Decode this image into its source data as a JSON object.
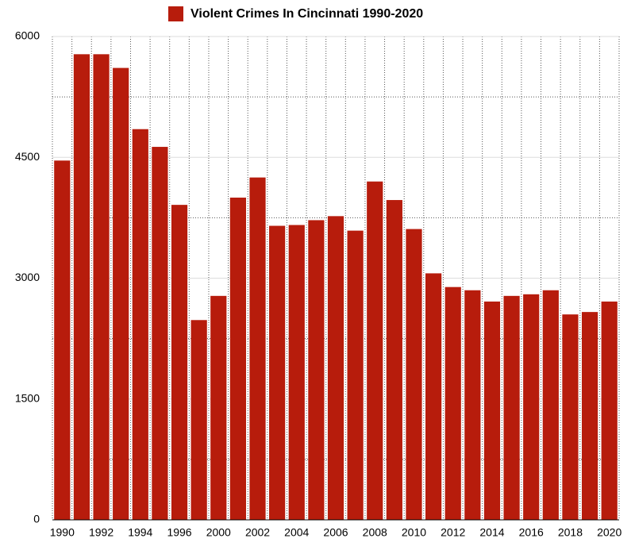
{
  "chart_data": {
    "type": "bar",
    "series": [
      {
        "name": "Violent Crimes In Cincinnati 1990-2020",
        "color": "#b71c0c",
        "values": [
          4460,
          5780,
          5780,
          5610,
          4850,
          4630,
          3910,
          2480,
          2780,
          4000,
          4250,
          3650,
          3660,
          3720,
          3770,
          3590,
          4200,
          3970,
          3610,
          3060,
          2890,
          2850,
          2710,
          2780,
          2800,
          2850,
          2550,
          2580,
          2710
        ]
      }
    ],
    "categories": [
      "1990",
      null,
      "1992",
      null,
      "1994",
      null,
      "1996",
      null,
      "2000",
      null,
      "2002",
      null,
      "2004",
      null,
      "2006",
      null,
      "2008",
      null,
      "2010",
      null,
      "2012",
      null,
      "2014",
      null,
      "2016",
      null,
      "2018",
      null,
      "2020"
    ],
    "ylim": [
      0,
      6000
    ],
    "yticks": [
      0,
      1500,
      3000,
      4500,
      6000
    ],
    "minor_yticks": [
      750,
      2250,
      3750,
      5250
    ],
    "grid": true,
    "legend": "top"
  }
}
